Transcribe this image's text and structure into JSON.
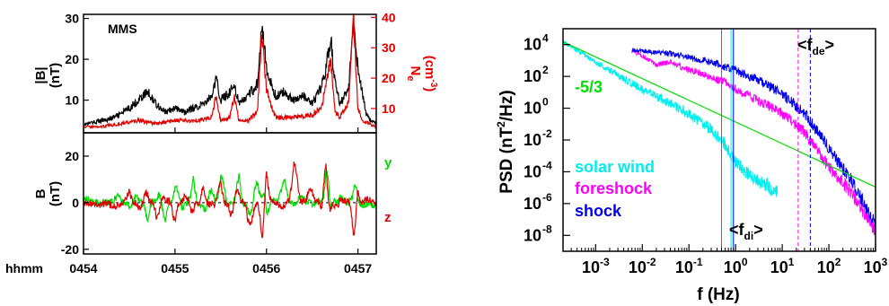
{
  "chart_data": [
    {
      "type": "line",
      "panel": "magnetic-field-magnitude-and-density",
      "label": "MMS",
      "x_axis": {
        "label": "hhmm",
        "ticks": [
          "0454",
          "0455",
          "0456",
          "0457"
        ],
        "range_minutes": [
          0,
          3.2
        ]
      },
      "left_axis": {
        "label_main": "|B|",
        "label_unit": "(nT)",
        "ticks": [
          10,
          20,
          30
        ],
        "range": [
          2,
          31
        ],
        "color": "#000000"
      },
      "right_axis": {
        "label_main": "N",
        "label_sub": "e",
        "label_unit": "(cm",
        "label_unit_sup": "-3",
        "label_unit_close": ")",
        "ticks": [
          10,
          20,
          30,
          40
        ],
        "range": [
          2,
          41
        ],
        "color": "#e00000"
      },
      "series": [
        {
          "axis": "left",
          "color": "#000000",
          "x": [
            0,
            0.1,
            0.2,
            0.3,
            0.4,
            0.5,
            0.6,
            0.7,
            0.8,
            0.9,
            1.0,
            1.1,
            1.2,
            1.3,
            1.4,
            1.45,
            1.5,
            1.6,
            1.65,
            1.7,
            1.8,
            1.9,
            1.95,
            2.0,
            2.05,
            2.1,
            2.2,
            2.3,
            2.4,
            2.5,
            2.6,
            2.65,
            2.7,
            2.75,
            2.8,
            2.9,
            2.95,
            3.0,
            3.05,
            3.1,
            3.2
          ],
          "y": [
            4,
            4.5,
            5,
            5.5,
            6.5,
            8,
            10,
            12,
            9,
            7,
            8,
            7,
            8,
            9,
            11,
            15,
            10,
            12,
            14,
            9,
            11,
            14,
            30,
            17,
            14,
            11,
            12,
            10,
            11,
            9,
            13,
            18,
            25,
            15,
            9,
            13,
            30,
            18,
            11,
            6,
            4
          ]
        },
        {
          "axis": "right",
          "color": "#e00000",
          "x": [
            0,
            0.2,
            0.4,
            0.6,
            0.8,
            1.0,
            1.2,
            1.4,
            1.45,
            1.5,
            1.6,
            1.65,
            1.7,
            1.8,
            1.9,
            1.95,
            2.0,
            2.05,
            2.1,
            2.3,
            2.5,
            2.6,
            2.65,
            2.7,
            2.75,
            2.8,
            2.9,
            2.95,
            3.0,
            3.05,
            3.2
          ],
          "y": [
            4,
            4,
            5,
            6,
            5,
            6,
            6,
            7,
            14,
            6,
            7,
            14,
            6,
            6,
            9,
            36,
            16,
            11,
            7,
            7,
            8,
            10,
            18,
            27,
            9,
            7,
            12,
            40,
            10,
            6,
            4
          ]
        }
      ]
    },
    {
      "type": "line",
      "panel": "magnetic-field-components",
      "x_axis": {
        "label": "hhmm",
        "ticks": [
          "0454",
          "0455",
          "0456",
          "0457"
        ],
        "range_minutes": [
          0,
          3.2
        ]
      },
      "left_axis": {
        "label_main": "B",
        "label_unit": "(nT)",
        "ticks": [
          -20,
          0,
          20
        ],
        "range": [
          -22,
          30
        ]
      },
      "legend": [
        {
          "name": "y",
          "color": "#00dd00"
        },
        {
          "name": "z",
          "color": "#e00000"
        }
      ],
      "series": [
        {
          "name": "y",
          "color": "#00dd00",
          "x": [
            0,
            0.2,
            0.4,
            0.5,
            0.6,
            0.7,
            0.8,
            0.9,
            1.0,
            1.1,
            1.2,
            1.3,
            1.4,
            1.5,
            1.6,
            1.7,
            1.8,
            1.9,
            1.95,
            2.0,
            2.1,
            2.2,
            2.3,
            2.4,
            2.5,
            2.6,
            2.65,
            2.7,
            2.8,
            2.9,
            2.95,
            3.0,
            3.1,
            3.2
          ],
          "y": [
            2,
            0,
            3,
            -4,
            6,
            -8,
            10,
            -10,
            11,
            -8,
            10,
            -9,
            8,
            14,
            -6,
            12,
            -14,
            14,
            26,
            -5,
            4,
            10,
            -3,
            6,
            -1,
            3,
            22,
            -2,
            5,
            -1,
            29,
            1,
            -4,
            0
          ]
        },
        {
          "name": "z",
          "color": "#e00000",
          "x": [
            0,
            0.2,
            0.4,
            0.5,
            0.6,
            0.7,
            0.8,
            0.9,
            1.0,
            1.1,
            1.2,
            1.3,
            1.4,
            1.5,
            1.6,
            1.7,
            1.8,
            1.9,
            1.95,
            2.0,
            2.1,
            2.2,
            2.3,
            2.4,
            2.5,
            2.6,
            2.65,
            2.7,
            2.8,
            2.9,
            2.95,
            3.0,
            3.1,
            3.2
          ],
          "y": [
            0,
            -1,
            -2,
            5,
            -6,
            7,
            -8,
            9,
            -9,
            8,
            -8,
            7,
            -6,
            9,
            -10,
            11,
            -9,
            -8,
            -21,
            14,
            0,
            -3,
            18,
            2,
            6,
            -4,
            18,
            -12,
            1,
            3,
            -18,
            5,
            2,
            0
          ]
        }
      ]
    },
    {
      "type": "line",
      "panel": "power-spectral-density",
      "log_x": true,
      "log_y": true,
      "x_axis": {
        "label": "f (Hz)",
        "ticks_exp": [
          -3,
          -2,
          -1,
          0,
          1,
          2,
          3
        ],
        "range": [
          0.0002,
          1000
        ]
      },
      "y_axis": {
        "label": "PSD (nT",
        "label_sup": "2",
        "label_tail": "/Hz)",
        "ticks_exp": [
          -8,
          -6,
          -4,
          -2,
          0,
          2,
          4
        ],
        "range": [
          1e-09,
          100000.0
        ]
      },
      "fit_line": {
        "label": "-5/3",
        "color": "#00dd00",
        "f": [
          0.0002,
          1000
        ],
        "psd": [
          15000,
          1.1e-05
        ]
      },
      "legend": [
        {
          "name": "solar wind",
          "color": "#00eeee"
        },
        {
          "name": "foreshock",
          "color": "#ff00ff"
        },
        {
          "name": "shock",
          "color": "#0000ee"
        }
      ],
      "markers": [
        {
          "label": "f",
          "sub": "di",
          "color": "#00eeee",
          "style": "solid",
          "f": 0.8
        },
        {
          "label": "f",
          "sub": "di",
          "color": "#ff00ff",
          "style": "solid",
          "f": 0.5
        },
        {
          "label": "f",
          "sub": "di",
          "color": "#0000ee",
          "style": "solid",
          "f": 0.9
        },
        {
          "label": "f",
          "sub": "de",
          "color": "#ff00ff",
          "style": "dashed",
          "f": 22
        },
        {
          "label": "f",
          "sub": "de",
          "color": "#0000ee",
          "style": "dashed",
          "f": 40
        }
      ],
      "series": [
        {
          "name": "solar wind",
          "color": "#00eeee",
          "f": [
            0.0002,
            0.001,
            0.005,
            0.01,
            0.05,
            0.1,
            0.3,
            0.6,
            1,
            2,
            5,
            8
          ],
          "psd": [
            15000,
            800,
            50,
            15,
            1.5,
            0.4,
            0.05,
            0.005,
            0.0004,
            6e-05,
            1.2e-05,
            5e-06
          ]
        },
        {
          "name": "foreshock",
          "color": "#ff00ff",
          "f": [
            0.006,
            0.01,
            0.02,
            0.04,
            0.08,
            0.15,
            0.3,
            0.6,
            1,
            3,
            10,
            30,
            100,
            300,
            1000
          ],
          "psd": [
            4000,
            2000,
            500,
            900,
            300,
            200,
            80,
            40,
            15,
            3,
            0.5,
            0.03,
            0.0002,
            5e-06,
            2e-08
          ]
        },
        {
          "name": "shock",
          "color": "#0000ee",
          "f": [
            0.006,
            0.01,
            0.05,
            0.1,
            0.3,
            0.6,
            1,
            3,
            10,
            30,
            100,
            300,
            1000
          ],
          "psd": [
            5000,
            4000,
            2500,
            1500,
            800,
            400,
            250,
            60,
            8,
            0.5,
            0.003,
            3e-05,
            5e-08
          ]
        }
      ]
    }
  ]
}
